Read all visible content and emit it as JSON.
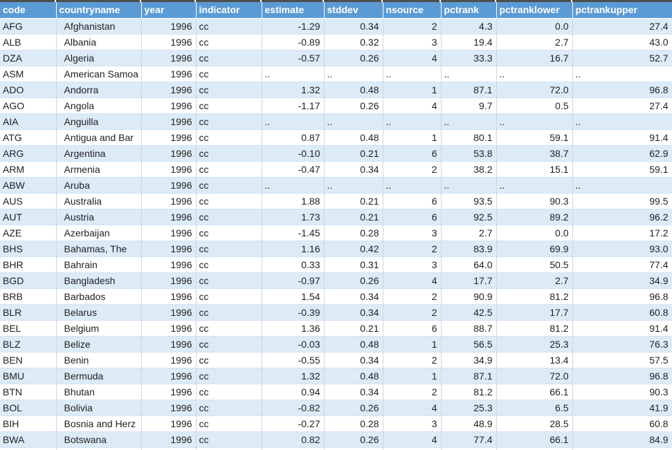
{
  "table": {
    "columns": [
      "code",
      "countryname",
      "year",
      "indicator",
      "estimate",
      "stddev",
      "nsource",
      "pctrank",
      "pctranklower",
      "pctrankupper"
    ],
    "rows": [
      [
        "AFG",
        "Afghanistan",
        "1996",
        "cc",
        "-1.29",
        "0.34",
        "2",
        "4.3",
        "0.0",
        "27.4"
      ],
      [
        "ALB",
        "Albania",
        "1996",
        "cc",
        "-0.89",
        "0.32",
        "3",
        "19.4",
        "2.7",
        "43.0"
      ],
      [
        "DZA",
        "Algeria",
        "1996",
        "cc",
        "-0.57",
        "0.26",
        "4",
        "33.3",
        "16.7",
        "52.7"
      ],
      [
        "ASM",
        "American Samoa",
        "1996",
        "cc",
        "..",
        "..",
        "..",
        "..",
        "..",
        ".."
      ],
      [
        "ADO",
        "Andorra",
        "1996",
        "cc",
        "1.32",
        "0.48",
        "1",
        "87.1",
        "72.0",
        "96.8"
      ],
      [
        "AGO",
        "Angola",
        "1996",
        "cc",
        "-1.17",
        "0.26",
        "4",
        "9.7",
        "0.5",
        "27.4"
      ],
      [
        "AIA",
        "Anguilla",
        "1996",
        "cc",
        "..",
        "..",
        "..",
        "..",
        "..",
        ".."
      ],
      [
        "ATG",
        "Antigua and Bar",
        "1996",
        "cc",
        "0.87",
        "0.48",
        "1",
        "80.1",
        "59.1",
        "91.4"
      ],
      [
        "ARG",
        "Argentina",
        "1996",
        "cc",
        "-0.10",
        "0.21",
        "6",
        "53.8",
        "38.7",
        "62.9"
      ],
      [
        "ARM",
        "Armenia",
        "1996",
        "cc",
        "-0.47",
        "0.34",
        "2",
        "38.2",
        "15.1",
        "59.1"
      ],
      [
        "ABW",
        "Aruba",
        "1996",
        "cc",
        "..",
        "..",
        "..",
        "..",
        "..",
        ".."
      ],
      [
        "AUS",
        "Australia",
        "1996",
        "cc",
        "1.88",
        "0.21",
        "6",
        "93.5",
        "90.3",
        "99.5"
      ],
      [
        "AUT",
        "Austria",
        "1996",
        "cc",
        "1.73",
        "0.21",
        "6",
        "92.5",
        "89.2",
        "96.2"
      ],
      [
        "AZE",
        "Azerbaijan",
        "1996",
        "cc",
        "-1.45",
        "0.28",
        "3",
        "2.7",
        "0.0",
        "17.2"
      ],
      [
        "BHS",
        "Bahamas, The",
        "1996",
        "cc",
        "1.16",
        "0.42",
        "2",
        "83.9",
        "69.9",
        "93.0"
      ],
      [
        "BHR",
        "Bahrain",
        "1996",
        "cc",
        "0.33",
        "0.31",
        "3",
        "64.0",
        "50.5",
        "77.4"
      ],
      [
        "BGD",
        "Bangladesh",
        "1996",
        "cc",
        "-0.97",
        "0.26",
        "4",
        "17.7",
        "2.7",
        "34.9"
      ],
      [
        "BRB",
        "Barbados",
        "1996",
        "cc",
        "1.54",
        "0.34",
        "2",
        "90.9",
        "81.2",
        "96.8"
      ],
      [
        "BLR",
        "Belarus",
        "1996",
        "cc",
        "-0.39",
        "0.34",
        "2",
        "42.5",
        "17.7",
        "60.8"
      ],
      [
        "BEL",
        "Belgium",
        "1996",
        "cc",
        "1.36",
        "0.21",
        "6",
        "88.7",
        "81.2",
        "91.4"
      ],
      [
        "BLZ",
        "Belize",
        "1996",
        "cc",
        "-0.03",
        "0.48",
        "1",
        "56.5",
        "25.3",
        "76.3"
      ],
      [
        "BEN",
        "Benin",
        "1996",
        "cc",
        "-0.55",
        "0.34",
        "2",
        "34.9",
        "13.4",
        "57.5"
      ],
      [
        "BMU",
        "Bermuda",
        "1996",
        "cc",
        "1.32",
        "0.48",
        "1",
        "87.1",
        "72.0",
        "96.8"
      ],
      [
        "BTN",
        "Bhutan",
        "1996",
        "cc",
        "0.94",
        "0.34",
        "2",
        "81.2",
        "66.1",
        "90.3"
      ],
      [
        "BOL",
        "Bolivia",
        "1996",
        "cc",
        "-0.82",
        "0.26",
        "4",
        "25.3",
        "6.5",
        "41.9"
      ],
      [
        "BIH",
        "Bosnia and Herz",
        "1996",
        "cc",
        "-0.27",
        "0.28",
        "3",
        "48.9",
        "28.5",
        "60.8"
      ],
      [
        "BWA",
        "Botswana",
        "1996",
        "cc",
        "0.82",
        "0.26",
        "4",
        "77.4",
        "66.1",
        "84.9"
      ]
    ]
  },
  "colors": {
    "header_bg": "#5b9bd5",
    "header_text": "#ffffff",
    "band_bg": "#ddebf7",
    "row_bg": "#ffffff",
    "gridline": "#9bc2e6"
  }
}
